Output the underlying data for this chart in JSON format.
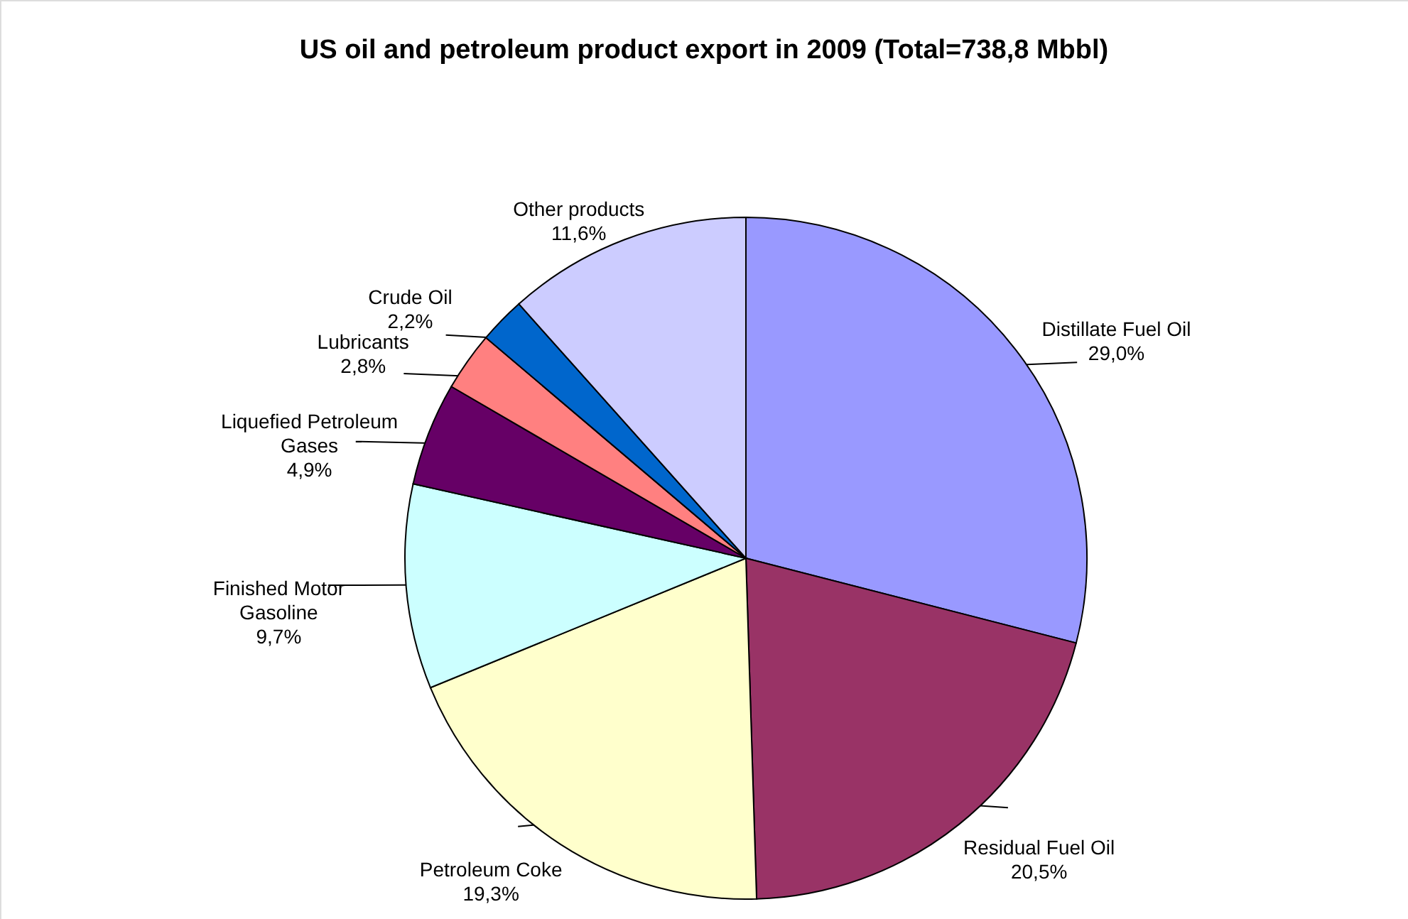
{
  "chart_data": {
    "type": "pie",
    "title": "US oil and petroleum product export in 2009 (Total=738,8 Mbbl)",
    "categories": [
      "Distillate Fuel Oil",
      "Residual Fuel Oil",
      "Petroleum Coke",
      "Finished Motor\nGasoline",
      "Liquefied Petroleum\nGases",
      "Lubricants",
      "Crude Oil",
      "Other products"
    ],
    "values": [
      29.0,
      20.5,
      19.3,
      9.7,
      4.9,
      2.8,
      2.2,
      11.6
    ],
    "value_labels": [
      "29,0%",
      "20,5%",
      "19,3%",
      "9,7%",
      "4,9%",
      "2,8%",
      "2,2%",
      "11,6%"
    ],
    "colors": [
      "#9999ff",
      "#993366",
      "#ffffcc",
      "#ccffff",
      "#660066",
      "#ff8080",
      "#0066cc",
      "#ccccff"
    ],
    "legend": false
  }
}
